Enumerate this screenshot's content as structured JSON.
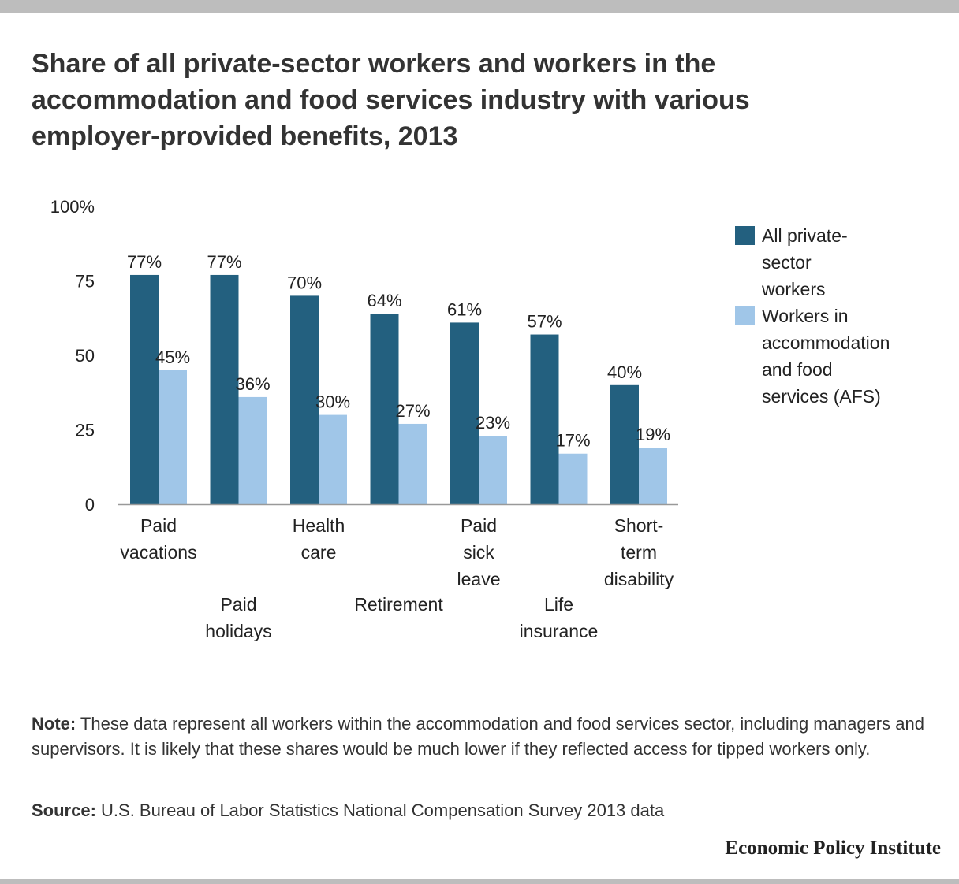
{
  "title": "Share of all private-sector workers and workers in the accommodation and food services industry with various employer-provided benefits, 2013",
  "chart_data": {
    "type": "bar",
    "categories": [
      "Paid vacations",
      "Paid holidays",
      "Health care",
      "Retirement",
      "Paid sick leave",
      "Life insurance",
      "Short-term disability"
    ],
    "category_label_lines": [
      [
        "Paid",
        "vacations"
      ],
      [
        "Paid",
        "holidays"
      ],
      [
        "Health",
        "care"
      ],
      [
        "Retirement"
      ],
      [
        "Paid",
        "sick",
        "leave"
      ],
      [
        "Life",
        "insurance"
      ],
      [
        "Short-",
        "term",
        "disability"
      ]
    ],
    "series": [
      {
        "name": "All private-sector workers",
        "values": [
          77,
          77,
          70,
          64,
          61,
          57,
          40
        ],
        "color": "#23607f"
      },
      {
        "name": "Workers in accommodation and food services (AFS)",
        "values": [
          45,
          36,
          30,
          27,
          23,
          17,
          19
        ],
        "color": "#a0c6e8"
      }
    ],
    "data_labels": [
      [
        "77%",
        "77%",
        "70%",
        "64%",
        "61%",
        "57%",
        "40%"
      ],
      [
        "45%",
        "36%",
        "30%",
        "27%",
        "23%",
        "17%",
        "19%"
      ]
    ],
    "ylim": [
      0,
      100
    ],
    "yticks": [
      0,
      25,
      50,
      75,
      100
    ],
    "ytick_labels": [
      "0",
      "25",
      "50",
      "75",
      "100%"
    ],
    "legend_placement": "right",
    "grid": false
  },
  "legend": {
    "items": [
      {
        "lines": [
          "All private-",
          "sector",
          "workers"
        ],
        "color": "#23607f"
      },
      {
        "lines": [
          "Workers in",
          "accommodation",
          "and food",
          "services (AFS)"
        ],
        "color": "#a0c6e8"
      }
    ]
  },
  "note": {
    "label": "Note:",
    "text": " These data represent all workers within the accommodation and food services sector, including managers and supervisors. It is likely that these shares would be much lower if they reflected access for tipped workers only."
  },
  "source": {
    "label": "Source:",
    "text": " U.S. Bureau of Labor Statistics National Compensation Survey 2013 data"
  },
  "brand": "Economic Policy Institute"
}
